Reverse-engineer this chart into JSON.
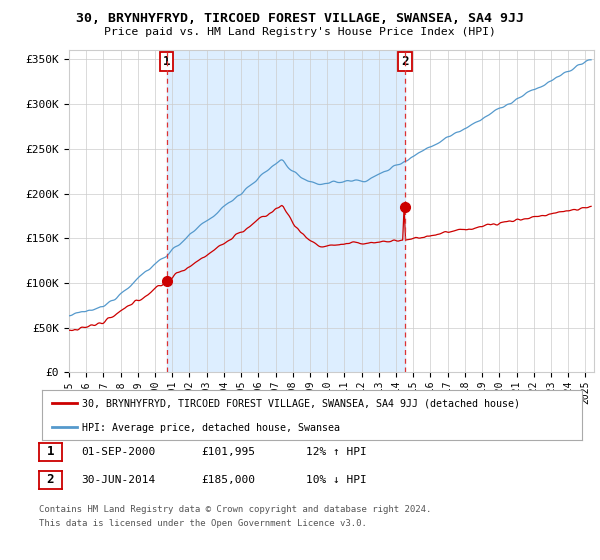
{
  "title": "30, BRYNHYFRYD, TIRCOED FOREST VILLAGE, SWANSEA, SA4 9JJ",
  "subtitle": "Price paid vs. HM Land Registry's House Price Index (HPI)",
  "ylabel_ticks": [
    "£0",
    "£50K",
    "£100K",
    "£150K",
    "£200K",
    "£250K",
    "£300K",
    "£350K"
  ],
  "ylabel_values": [
    0,
    50000,
    100000,
    150000,
    200000,
    250000,
    300000,
    350000
  ],
  "ylim": [
    0,
    360000
  ],
  "xlim_start": 1995.0,
  "xlim_end": 2025.5,
  "line1_color": "#cc0000",
  "line2_color": "#5599cc",
  "shade_color": "#ddeeff",
  "point1_x": 2000.67,
  "point1_y": 101995,
  "point2_x": 2014.5,
  "point2_y": 185000,
  "vline1_x": 2000.67,
  "vline2_x": 2014.5,
  "vline_color": "#dd3333",
  "legend_label1": "30, BRYNHYFRYD, TIRCOED FOREST VILLAGE, SWANSEA, SA4 9JJ (detached house)",
  "legend_label2": "HPI: Average price, detached house, Swansea",
  "table_row1": [
    "1",
    "01-SEP-2000",
    "£101,995",
    "12% ↑ HPI"
  ],
  "table_row2": [
    "2",
    "30-JUN-2014",
    "£185,000",
    "10% ↓ HPI"
  ],
  "footnote1": "Contains HM Land Registry data © Crown copyright and database right 2024.",
  "footnote2": "This data is licensed under the Open Government Licence v3.0.",
  "bg_color": "#ffffff",
  "grid_color": "#cccccc",
  "xtick_years": [
    1995,
    1996,
    1997,
    1998,
    1999,
    2000,
    2001,
    2002,
    2003,
    2004,
    2005,
    2006,
    2007,
    2008,
    2009,
    2010,
    2011,
    2012,
    2013,
    2014,
    2015,
    2016,
    2017,
    2018,
    2019,
    2020,
    2021,
    2022,
    2023,
    2024,
    2025
  ]
}
